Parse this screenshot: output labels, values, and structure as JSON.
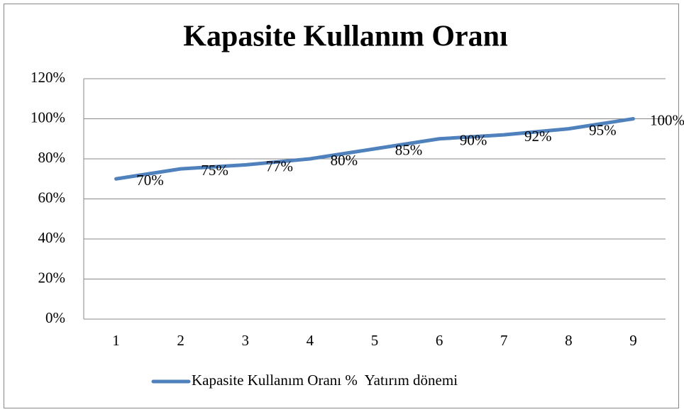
{
  "chart_data": {
    "type": "line",
    "title": "Kapasite Kullanım Oranı",
    "categories": [
      "1",
      "2",
      "3",
      "4",
      "5",
      "6",
      "7",
      "8",
      "9"
    ],
    "series": [
      {
        "name": "Kapasite Kullanım Oranı %  Yatırım dönemi",
        "color": "#4f81bd",
        "values": [
          70,
          75,
          77,
          80,
          85,
          90,
          92,
          95,
          100
        ],
        "value_labels": [
          "70%",
          "75%",
          "77%",
          "80%",
          "85%",
          "90%",
          "92%",
          "95%",
          "100%"
        ]
      }
    ],
    "ylim": [
      0,
      120
    ],
    "yticks": [
      {
        "value": 0,
        "label": "0%"
      },
      {
        "value": 20,
        "label": "20%"
      },
      {
        "value": 40,
        "label": "40%"
      },
      {
        "value": 60,
        "label": "60%"
      },
      {
        "value": 80,
        "label": "80%"
      },
      {
        "value": 100,
        "label": "100%"
      },
      {
        "value": 120,
        "label": "120%"
      }
    ],
    "grid": true,
    "legend": "bottom"
  }
}
